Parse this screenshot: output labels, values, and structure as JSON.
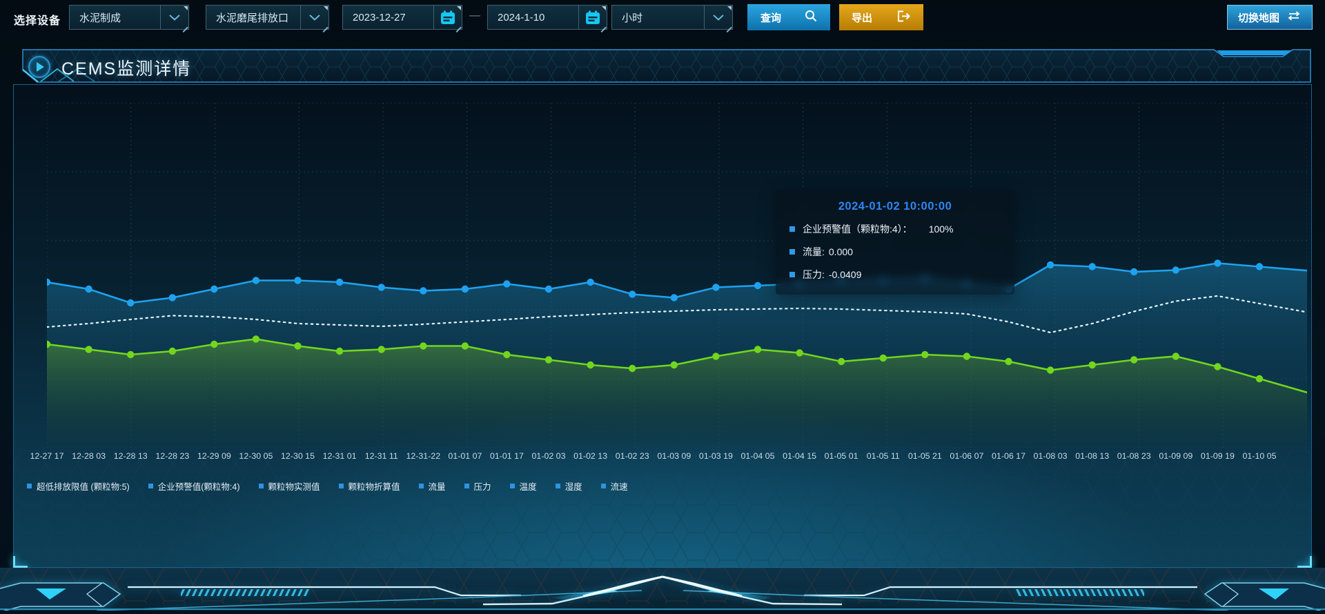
{
  "toolbar": {
    "device_label": "选择设备",
    "device_type": {
      "value": "水泥制成"
    },
    "outlet": {
      "value": "水泥磨尾排放口"
    },
    "date_start": {
      "value": "2023-12-27"
    },
    "range_separator": "—",
    "date_end": {
      "value": "2024-1-10"
    },
    "interval": {
      "value": "小时"
    },
    "query_label": "查询",
    "export_label": "导出",
    "switch_map_label": "切换地图"
  },
  "icons": {
    "query": "magnifier",
    "export": "box-arrow-right",
    "switch_map": "swap-arrows",
    "date": "calendar",
    "select": "chevron-down",
    "panel_title": "play"
  },
  "panel": {
    "title": "CEMS监测详情"
  },
  "tooltip": {
    "title": "2024-01-02 10:00:00",
    "rows": [
      {
        "label": "企业预警值（颗粒物:4）：",
        "value": "100%"
      },
      {
        "label": "流量:",
        "value": "0.000"
      },
      {
        "label": "压力:",
        "value": "-0.0409"
      }
    ]
  },
  "legend": {
    "marker_color": "#2f93e0",
    "items": [
      "超低排放限值 (颗粒物:5)",
      "企业预警值(颗粒物:4)",
      "颗粒物实测值",
      "颗粒物折算值",
      "流量",
      "压力",
      "温度",
      "湿度",
      "流速"
    ]
  },
  "chart_data": {
    "type": "line",
    "title": "",
    "xlabel": "",
    "ylabel": "",
    "grid": true,
    "legend_position": "bottom",
    "y_axis_labels_visible": false,
    "ylim": [
      0,
      100
    ],
    "note": "no y-axis tick labels are visible in the chart; series values are estimated as percent of plot height from the bottom",
    "categories": [
      "12-27 17",
      "12-28 03",
      "12-28 13",
      "12-28 23",
      "12-29 09",
      "12-30 05",
      "12-30 15",
      "12-31 01",
      "12-31 11",
      "12-31-22",
      "01-01 07",
      "01-01 17",
      "01-02 03",
      "01-02 13",
      "01-02 23",
      "01-03 09",
      "01-03 19",
      "01-04 05",
      "01-04 15",
      "01-05 01",
      "01-05 11",
      "01-05 21",
      "01-06 07",
      "01-06 17",
      "01-08 03",
      "01-08 13",
      "01-08 23",
      "01-09 09",
      "01-09 19",
      "01-10 05"
    ],
    "series": [
      {
        "name": "企业预警值(颗粒物:4)",
        "color": "#1ea2f0",
        "style": "solid",
        "markers": true,
        "area": true,
        "gradient": "gBlue",
        "values": [
          48,
          46,
          42,
          43.5,
          46,
          48.5,
          48.5,
          48,
          46.5,
          45.5,
          46,
          47.5,
          46,
          48,
          44.5,
          43.5,
          46.5,
          47,
          47.5,
          48.5,
          48.5,
          49,
          47.5,
          46,
          53,
          52.5,
          51,
          51.5,
          53.5,
          52.5
        ]
      },
      {
        "name": "压力",
        "color": "#e9f5fa",
        "style": "dotted",
        "markers": false,
        "area": false,
        "gradient": "",
        "values": [
          35,
          36,
          37.2,
          38.3,
          38,
          37.2,
          36,
          35.6,
          35.2,
          35.8,
          36.5,
          37.2,
          38,
          38.6,
          39.2,
          39.6,
          40,
          40.2,
          40.4,
          40.2,
          39.8,
          39.4,
          38.8,
          36.5,
          33.4,
          36,
          39.5,
          42.5,
          44,
          41.8
        ]
      },
      {
        "name": "流量",
        "color": "#72d61e",
        "style": "solid",
        "markers": true,
        "area": true,
        "gradient": "gGreen",
        "values": [
          30,
          28.5,
          27,
          28,
          30,
          31.5,
          29.5,
          28,
          28.5,
          29.5,
          29.5,
          27,
          25.5,
          24,
          23,
          24,
          26.5,
          28.5,
          27.5,
          25,
          26,
          27,
          26.5,
          25,
          22.5,
          24,
          25.5,
          26.5,
          23.5,
          20
        ]
      }
    ]
  },
  "colors": {
    "accent_blue": "#2196dd",
    "accent_orange": "#d9930f",
    "tooltip_title": "#2e86f0",
    "grid_line": "#20566e",
    "legend_marker": "#2f93e0"
  }
}
